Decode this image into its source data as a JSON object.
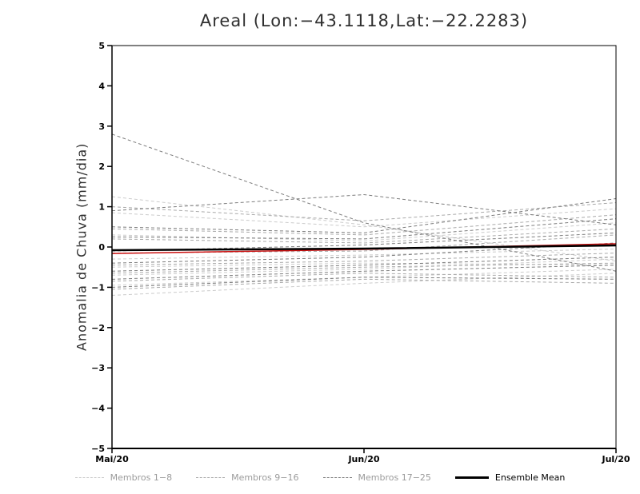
{
  "chart_data": {
    "type": "line",
    "title": "Areal (Lon:−43.1118,Lat:−22.2283)",
    "ylabel": "Anomalia de Chuva (mm/dia)",
    "x_categories": [
      "Mai/20",
      "Jun/20",
      "Jul/20"
    ],
    "ylim": [
      -5,
      5
    ],
    "y_ticks": [
      -5,
      -4,
      -3,
      -2,
      -1,
      0,
      1,
      2,
      3,
      4,
      5
    ],
    "grid": false,
    "legend_position": "bottom",
    "groups": [
      {
        "name": "Membros 1−8",
        "color": "#cbcbcb",
        "style": "dashed",
        "members": [
          [
            1.25,
            0.55,
            -0.35
          ],
          [
            0.85,
            0.5,
            0.95
          ],
          [
            0.3,
            0.15,
            0.6
          ],
          [
            -0.3,
            -0.2,
            -0.05
          ],
          [
            -0.5,
            -0.4,
            -0.45
          ],
          [
            -0.7,
            -0.55,
            -0.3
          ],
          [
            -0.95,
            -0.75,
            -0.55
          ],
          [
            -1.2,
            -0.9,
            -0.65
          ]
        ]
      },
      {
        "name": "Membros 9−16",
        "color": "#a9a9a9",
        "style": "dashed",
        "members": [
          [
            1.0,
            0.65,
            1.1
          ],
          [
            0.45,
            0.3,
            0.8
          ],
          [
            0.2,
            0.1,
            0.45
          ],
          [
            -0.15,
            -0.1,
            0.3
          ],
          [
            -0.45,
            -0.35,
            -0.15
          ],
          [
            -0.65,
            -0.5,
            -0.4
          ],
          [
            -0.85,
            -0.65,
            -0.75
          ],
          [
            -1.05,
            -0.8,
            -0.9
          ]
        ]
      },
      {
        "name": "Membros 17−25",
        "color": "#7c7c7c",
        "style": "dashed",
        "members": [
          [
            2.8,
            0.6,
            -0.6
          ],
          [
            0.9,
            1.3,
            0.55
          ],
          [
            0.5,
            0.35,
            1.2
          ],
          [
            0.25,
            0.2,
            0.7
          ],
          [
            -0.1,
            0.05,
            0.35
          ],
          [
            -0.4,
            -0.25,
            0.1
          ],
          [
            -0.6,
            -0.45,
            -0.25
          ],
          [
            -0.8,
            -0.6,
            -0.45
          ],
          [
            -1.0,
            -0.75,
            -0.8
          ]
        ]
      }
    ],
    "extra_series": [
      {
        "name": "red-reference-line",
        "color": "#cc1111",
        "style": "solid",
        "width": 1.5,
        "values": [
          -0.16,
          -0.06,
          0.08
        ]
      }
    ],
    "ensemble_mean": {
      "name": "Ensemble Mean",
      "color": "#000000",
      "style": "solid",
      "width": 2.5,
      "values": [
        -0.08,
        -0.04,
        0.04
      ]
    },
    "legend": [
      {
        "label": "Membros 1−8",
        "color": "#cbcbcb",
        "style": "dashed"
      },
      {
        "label": "Membros 9−16",
        "color": "#a9a9a9",
        "style": "dashed"
      },
      {
        "label": "Membros 17−25",
        "color": "#7c7c7c",
        "style": "dashed"
      },
      {
        "label": "Ensemble Mean",
        "color": "#000000",
        "style": "solid"
      }
    ]
  }
}
